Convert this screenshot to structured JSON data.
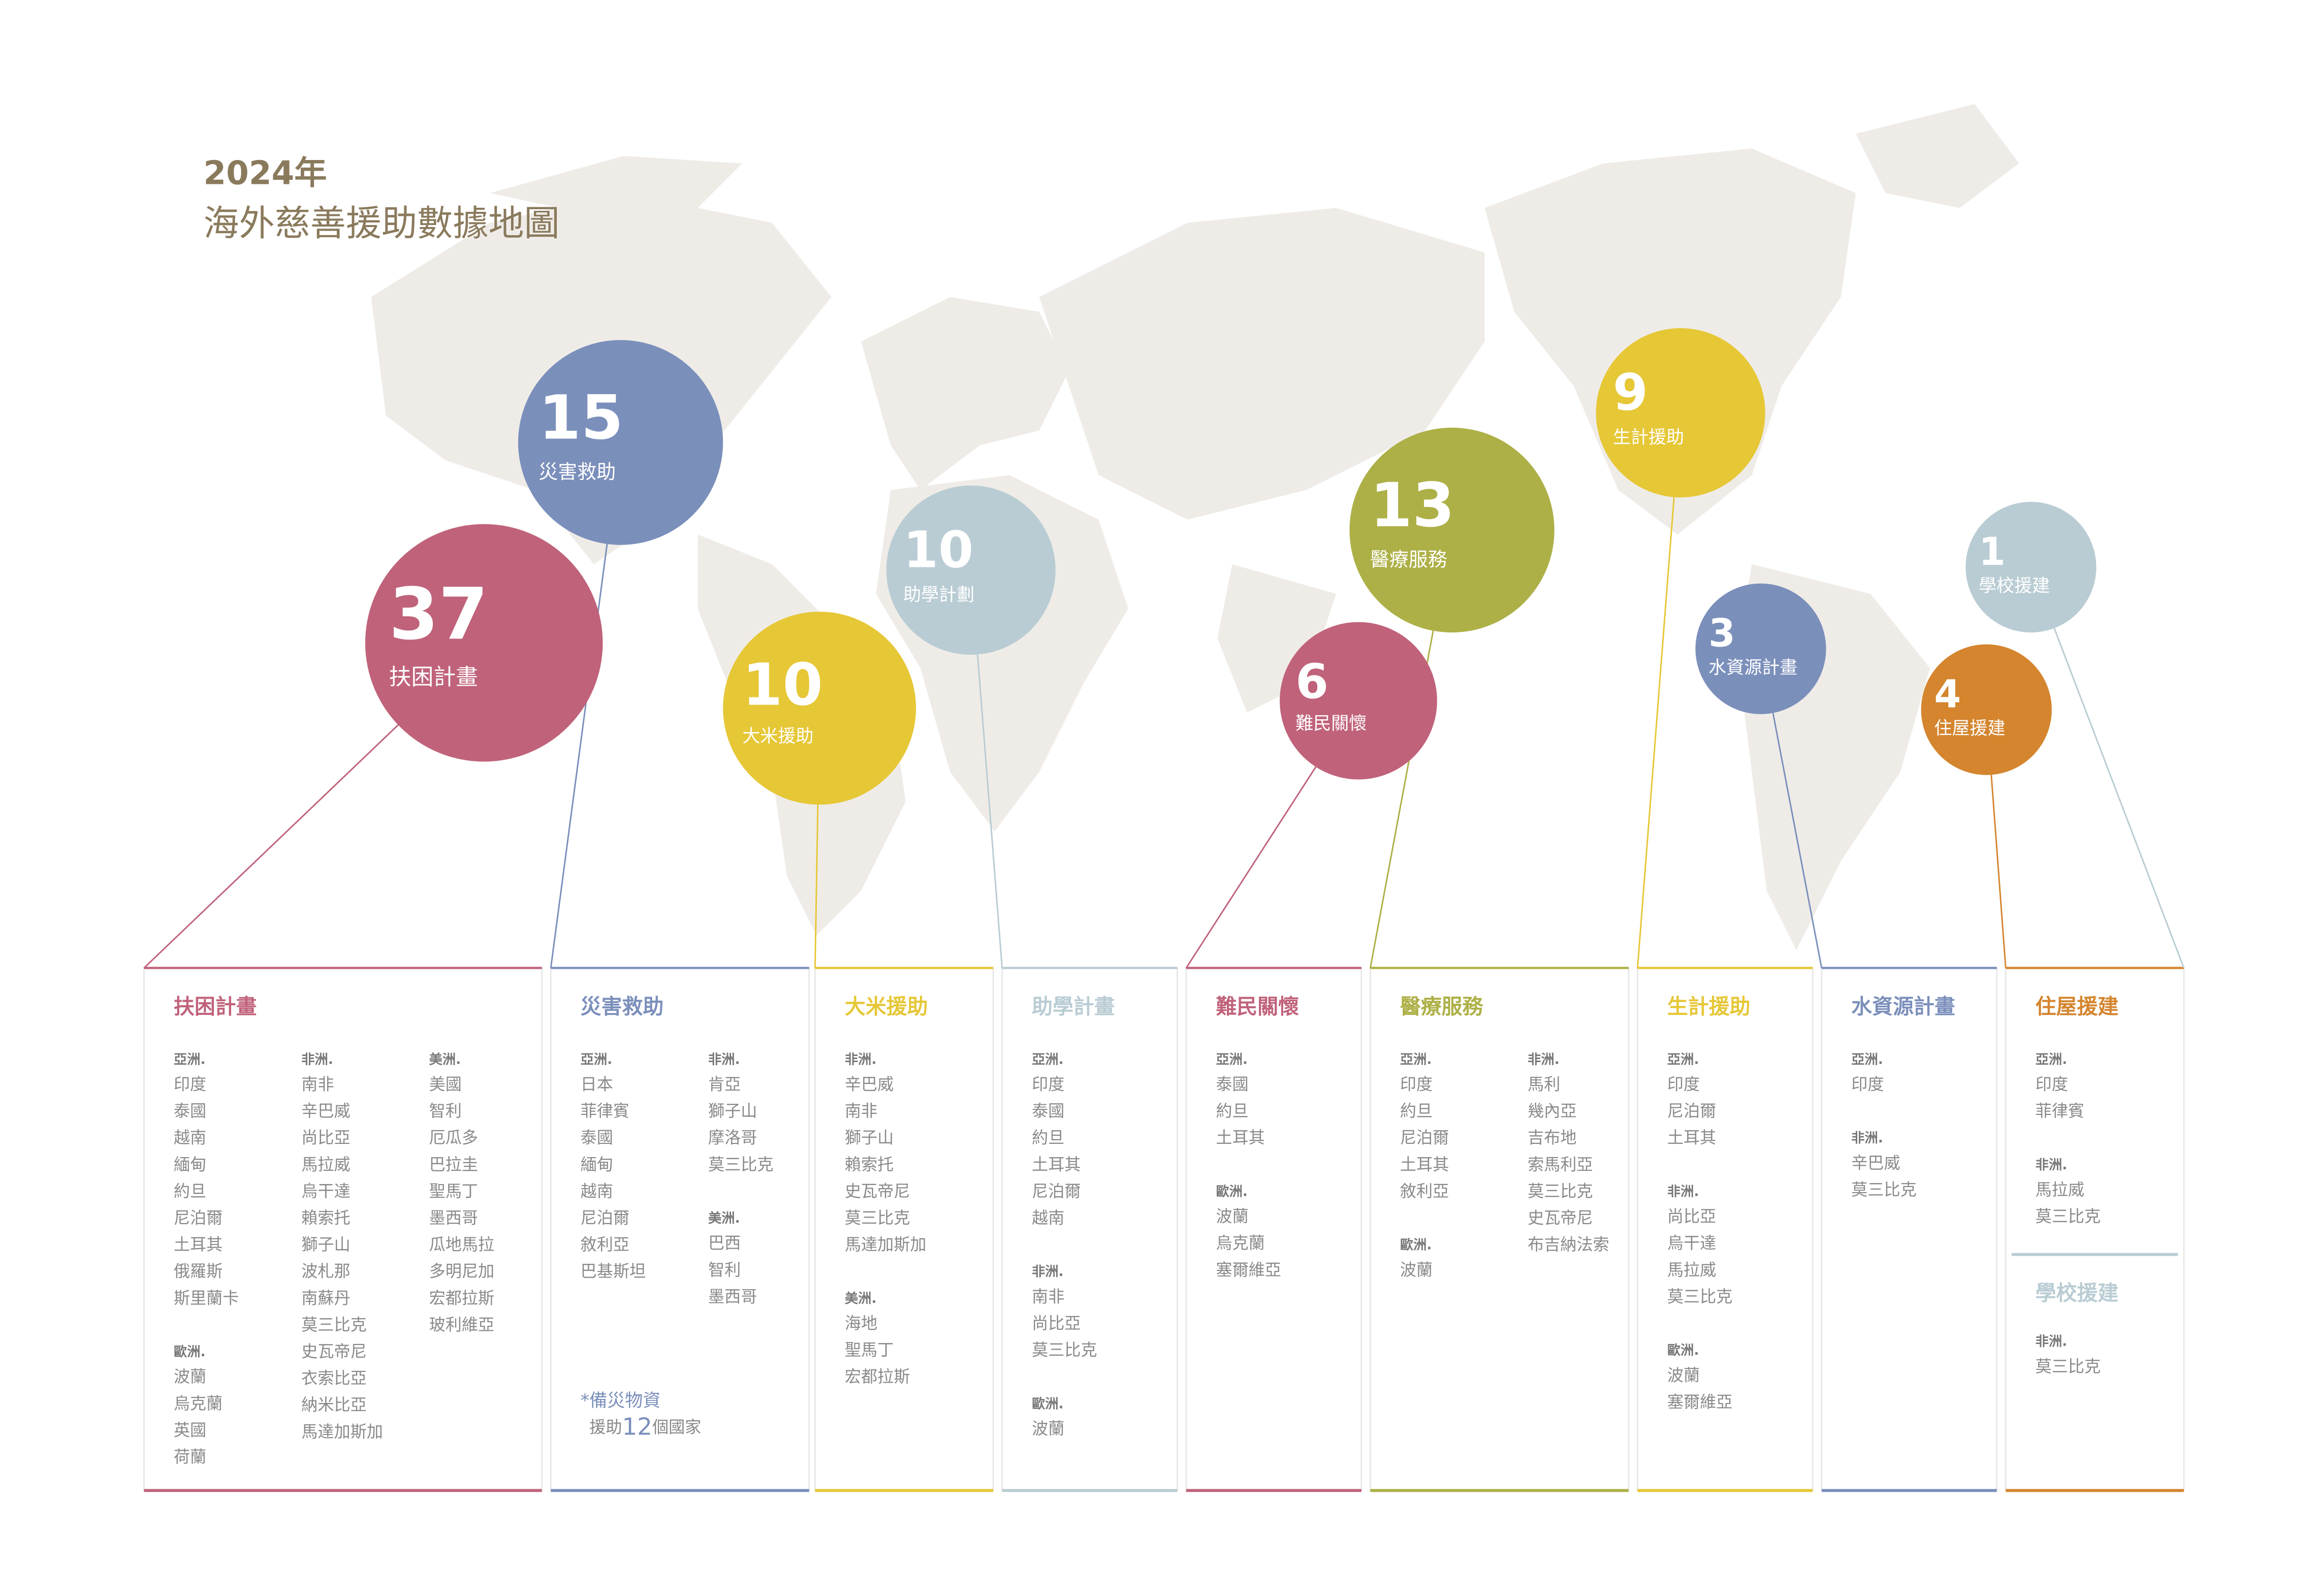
{
  "header": {
    "year": "2024年",
    "title": "海外慈善援助數據地圖"
  },
  "bubbles": [
    {
      "count": 37,
      "label": "扶困計畫",
      "color": "#c0627a"
    },
    {
      "count": 15,
      "label": "災害救助",
      "color": "#7b8fbb"
    },
    {
      "count": 10,
      "label": "助學計劃",
      "color": "#b9ccd3"
    },
    {
      "count": 10,
      "label": "大米援助",
      "color": "#e6c736"
    },
    {
      "count": 13,
      "label": "醫療服務",
      "color": "#adb046"
    },
    {
      "count": 6,
      "label": "難民關懷",
      "color": "#c0627a"
    },
    {
      "count": 9,
      "label": "生計援助",
      "color": "#e6c736"
    },
    {
      "count": 3,
      "label": "水資源計畫",
      "color": "#7b8fbb"
    },
    {
      "count": 1,
      "label": "學校援建",
      "color": "#b9ccd3"
    },
    {
      "count": 4,
      "label": "住屋援建",
      "color": "#d4852e"
    }
  ],
  "panels": [
    {
      "title": "扶困計畫",
      "color": "#c0627a",
      "columns": [
        [
          {
            "region": "亞洲.",
            "countries": [
              "印度",
              "泰國",
              "越南",
              "緬甸",
              "約旦",
              "尼泊爾",
              "土耳其",
              "俄羅斯",
              "斯里蘭卡"
            ]
          },
          {
            "region": "歐洲.",
            "countries": [
              "波蘭",
              "烏克蘭",
              "英國",
              "荷蘭"
            ]
          }
        ],
        [
          {
            "region": "非洲.",
            "countries": [
              "南非",
              "辛巴威",
              "尚比亞",
              "馬拉威",
              "烏干達",
              "賴索托",
              "獅子山",
              "波札那",
              "南蘇丹",
              "莫三比克",
              "史瓦帝尼",
              "衣索比亞",
              "納米比亞",
              "馬達加斯加"
            ]
          }
        ],
        [
          {
            "region": "美洲.",
            "countries": [
              "美國",
              "智利",
              "厄瓜多",
              "巴拉圭",
              "聖馬丁",
              "墨西哥",
              "瓜地馬拉",
              "多明尼加",
              "宏都拉斯",
              "玻利維亞"
            ]
          }
        ]
      ]
    },
    {
      "title": "災害救助",
      "color": "#7b8fbb",
      "columns": [
        [
          {
            "region": "亞洲.",
            "countries": [
              "日本",
              "菲律賓",
              "泰國",
              "緬甸",
              "越南",
              "尼泊爾",
              "敘利亞",
              "巴基斯坦"
            ]
          }
        ],
        [
          {
            "region": "非洲.",
            "countries": [
              "肯亞",
              "獅子山",
              "摩洛哥",
              "莫三比克"
            ]
          },
          {
            "region": "美洲.",
            "countries": [
              "巴西",
              "智利",
              "墨西哥"
            ]
          }
        ]
      ],
      "note": {
        "title": "*備災物資",
        "prefix": "援助",
        "count": 12,
        "suffix": "個國家"
      }
    },
    {
      "title": "大米援助",
      "color": "#e6c736",
      "columns": [
        [
          {
            "region": "非洲.",
            "countries": [
              "辛巴威",
              "南非",
              "獅子山",
              "賴索托",
              "史瓦帝尼",
              "莫三比克",
              "馬達加斯加"
            ]
          },
          {
            "region": "美洲.",
            "countries": [
              "海地",
              "聖馬丁",
              "宏都拉斯"
            ]
          }
        ]
      ]
    },
    {
      "title": "助學計畫",
      "color": "#b9ccd3",
      "columns": [
        [
          {
            "region": "亞洲.",
            "countries": [
              "印度",
              "泰國",
              "約旦",
              "土耳其",
              "尼泊爾",
              "越南"
            ]
          },
          {
            "region": "非洲.",
            "countries": [
              "南非",
              "尚比亞",
              "莫三比克"
            ]
          },
          {
            "region": "歐洲.",
            "countries": [
              "波蘭"
            ]
          }
        ]
      ]
    },
    {
      "title": "難民關懷",
      "color": "#c0627a",
      "columns": [
        [
          {
            "region": "亞洲.",
            "countries": [
              "泰國",
              "約旦",
              "土耳其"
            ]
          },
          {
            "region": "歐洲.",
            "countries": [
              "波蘭",
              "烏克蘭",
              "塞爾維亞"
            ]
          }
        ]
      ]
    },
    {
      "title": "醫療服務",
      "color": "#adb046",
      "columns": [
        [
          {
            "region": "亞洲.",
            "countries": [
              "印度",
              "約旦",
              "尼泊爾",
              "土耳其",
              "敘利亞"
            ]
          },
          {
            "region": "歐洲.",
            "countries": [
              "波蘭"
            ]
          }
        ],
        [
          {
            "region": "非洲.",
            "countries": [
              "馬利",
              "幾內亞",
              "吉布地",
              "索馬利亞",
              "莫三比克",
              "史瓦帝尼",
              "布吉納法索"
            ]
          }
        ]
      ]
    },
    {
      "title": "生計援助",
      "color": "#e6c736",
      "columns": [
        [
          {
            "region": "亞洲.",
            "countries": [
              "印度",
              "尼泊爾",
              "土耳其"
            ]
          },
          {
            "region": "非洲.",
            "countries": [
              "尚比亞",
              "烏干達",
              "馬拉威",
              "莫三比克"
            ]
          },
          {
            "region": "歐洲.",
            "countries": [
              "波蘭",
              "塞爾維亞"
            ]
          }
        ]
      ]
    },
    {
      "title": "水資源計畫",
      "color": "#7b8fbb",
      "columns": [
        [
          {
            "region": "亞洲.",
            "countries": [
              "印度"
            ]
          },
          {
            "region": "非洲.",
            "countries": [
              "辛巴威",
              "莫三比克"
            ]
          }
        ]
      ]
    },
    {
      "title": "住屋援建",
      "color": "#d4852e",
      "columns": [
        [
          {
            "region": "亞洲.",
            "countries": [
              "印度",
              "菲律賓"
            ]
          },
          {
            "region": "非洲.",
            "countries": [
              "馬拉威",
              "莫三比克"
            ]
          }
        ]
      ],
      "extra": {
        "title": "學校援建",
        "color": "#b9ccd3",
        "columns": [
          [
            {
              "region": "非洲.",
              "countries": [
                "莫三比克"
              ]
            }
          ]
        ]
      }
    }
  ]
}
